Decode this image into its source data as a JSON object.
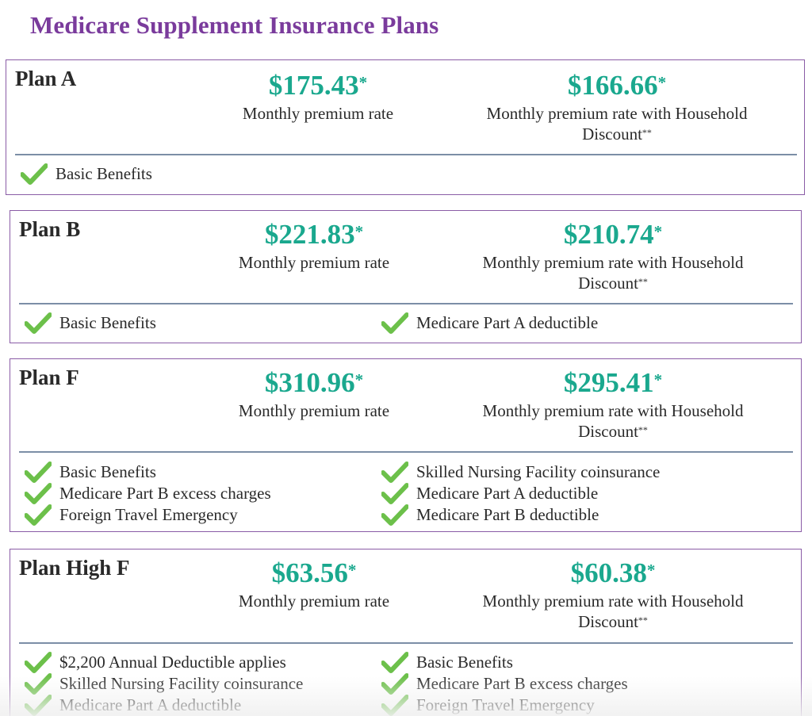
{
  "page_title": "Medicare Supplement Insurance Plans",
  "asterisk": "*",
  "double_asterisk": "**",
  "colors": {
    "title": "#7a3b9c",
    "price": "#1aa88e",
    "border": "#8a5ca6",
    "check": "#6cc04a",
    "divider": "#7c8ea6"
  },
  "plans": [
    {
      "name": "Plan A",
      "monthly_price": "$175.43",
      "monthly_label": "Monthly premium rate",
      "household_price": "$166.66",
      "household_label_line1": "Monthly premium rate with Household",
      "household_label_line2": "Discount",
      "benefits": [
        "Basic Benefits"
      ]
    },
    {
      "name": "Plan B",
      "monthly_price": "$221.83",
      "monthly_label": "Monthly premium rate",
      "household_price": "$210.74",
      "household_label_line1": "Monthly premium rate with Household",
      "household_label_line2": "Discount",
      "benefits": [
        "Basic Benefits",
        "Medicare Part A deductible"
      ]
    },
    {
      "name": "Plan F",
      "monthly_price": "$310.96",
      "monthly_label": "Monthly premium rate",
      "household_price": "$295.41",
      "household_label_line1": "Monthly premium rate with Household",
      "household_label_line2": "Discount",
      "benefits": [
        "Basic Benefits",
        "Skilled Nursing Facility coinsurance",
        "Medicare Part B excess charges",
        "Medicare Part A deductible",
        "Foreign Travel Emergency",
        "Medicare Part B deductible"
      ]
    },
    {
      "name": "Plan High F",
      "monthly_price": "$63.56",
      "monthly_label": "Monthly premium rate",
      "household_price": "$60.38",
      "household_label_line1": "Monthly premium rate with Household",
      "household_label_line2": "Discount",
      "benefits": [
        "$2,200 Annual Deductible applies",
        "Basic Benefits",
        "Skilled Nursing Facility coinsurance",
        "Medicare Part B excess charges",
        "Medicare Part A deductible",
        "Foreign Travel Emergency"
      ]
    }
  ]
}
